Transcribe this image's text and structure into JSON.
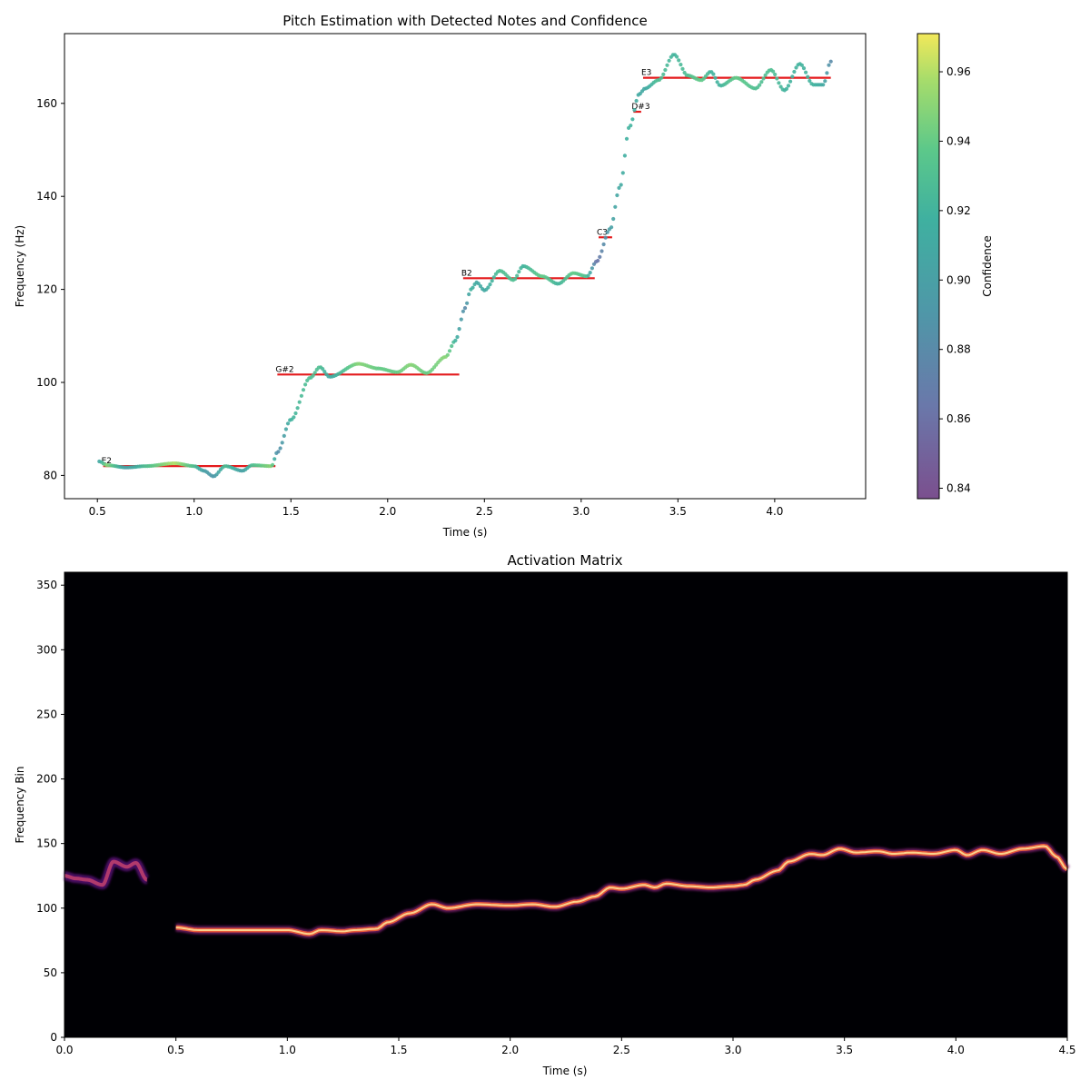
{
  "chart_data": [
    {
      "type": "scatter",
      "title": "Pitch Estimation with Detected Notes and Confidence",
      "xlabel": "Time (s)",
      "ylabel": "Frequency (Hz)",
      "xlim": [
        0.33,
        4.47
      ],
      "ylim": [
        75,
        175
      ],
      "xticks": [
        0.5,
        1.0,
        1.5,
        2.0,
        2.5,
        3.0,
        3.5,
        4.0
      ],
      "xtick_labels": [
        "0.5",
        "1.0",
        "1.5",
        "2.0",
        "2.5",
        "3.0",
        "3.5",
        "4.0"
      ],
      "yticks": [
        80,
        100,
        120,
        140,
        160
      ],
      "ytick_labels": [
        "80",
        "100",
        "120",
        "140",
        "160"
      ],
      "grid": false,
      "pitch_curve_keypoints": [
        [
          0.51,
          83.0,
          0.91
        ],
        [
          0.55,
          82.2,
          0.95
        ],
        [
          0.65,
          81.7,
          0.9
        ],
        [
          0.75,
          82.0,
          0.93
        ],
        [
          0.9,
          82.6,
          0.96
        ],
        [
          1.0,
          82.0,
          0.93
        ],
        [
          1.05,
          81.0,
          0.9
        ],
        [
          1.1,
          79.8,
          0.89
        ],
        [
          1.16,
          82.0,
          0.93
        ],
        [
          1.25,
          81.0,
          0.9
        ],
        [
          1.3,
          82.2,
          0.93
        ],
        [
          1.4,
          82.0,
          0.95
        ],
        [
          1.43,
          85.0,
          0.88
        ],
        [
          1.5,
          92.0,
          0.92
        ],
        [
          1.6,
          101.0,
          0.93
        ],
        [
          1.65,
          103.3,
          0.93
        ],
        [
          1.7,
          101.2,
          0.91
        ],
        [
          1.85,
          104.0,
          0.95
        ],
        [
          1.95,
          103.0,
          0.94
        ],
        [
          2.05,
          102.2,
          0.94
        ],
        [
          2.12,
          103.8,
          0.95
        ],
        [
          2.2,
          102.0,
          0.94
        ],
        [
          2.3,
          105.5,
          0.95
        ],
        [
          2.35,
          109.0,
          0.92
        ],
        [
          2.4,
          116.0,
          0.88
        ],
        [
          2.43,
          120.0,
          0.92
        ],
        [
          2.46,
          121.5,
          0.91
        ],
        [
          2.5,
          119.8,
          0.91
        ],
        [
          2.58,
          124.0,
          0.93
        ],
        [
          2.65,
          122.0,
          0.93
        ],
        [
          2.7,
          125.0,
          0.92
        ],
        [
          2.8,
          122.8,
          0.94
        ],
        [
          2.88,
          121.2,
          0.92
        ],
        [
          2.96,
          123.5,
          0.94
        ],
        [
          3.03,
          122.8,
          0.93
        ],
        [
          3.08,
          126.0,
          0.86
        ],
        [
          3.15,
          133.0,
          0.9
        ],
        [
          3.2,
          142.0,
          0.91
        ],
        [
          3.25,
          155.0,
          0.92
        ],
        [
          3.3,
          162.0,
          0.91
        ],
        [
          3.33,
          163.2,
          0.91
        ],
        [
          3.4,
          165.0,
          0.93
        ],
        [
          3.48,
          170.5,
          0.92
        ],
        [
          3.55,
          166.0,
          0.93
        ],
        [
          3.62,
          165.0,
          0.94
        ],
        [
          3.67,
          166.8,
          0.92
        ],
        [
          3.72,
          163.8,
          0.92
        ],
        [
          3.8,
          165.5,
          0.94
        ],
        [
          3.9,
          163.2,
          0.93
        ],
        [
          3.98,
          167.2,
          0.93
        ],
        [
          4.05,
          162.8,
          0.92
        ],
        [
          4.13,
          168.5,
          0.92
        ],
        [
          4.2,
          164.0,
          0.92
        ],
        [
          4.25,
          164.0,
          0.91
        ],
        [
          4.29,
          169.0,
          0.88
        ]
      ],
      "notes": [
        {
          "name": "E2",
          "start": 0.53,
          "end": 1.42,
          "freq": 82.0
        },
        {
          "name": "G#2",
          "start": 1.43,
          "end": 2.37,
          "freq": 101.7
        },
        {
          "name": "B2",
          "start": 2.39,
          "end": 3.07,
          "freq": 122.4
        },
        {
          "name": "C3",
          "start": 3.09,
          "end": 3.16,
          "freq": 131.2
        },
        {
          "name": "D#3",
          "start": 3.27,
          "end": 3.31,
          "freq": 158.2
        },
        {
          "name": "E3",
          "start": 3.32,
          "end": 4.29,
          "freq": 165.5
        }
      ],
      "colorbar": {
        "label": "Confidence",
        "range": [
          0.837,
          0.971
        ],
        "ticks": [
          0.84,
          0.86,
          0.88,
          0.9,
          0.92,
          0.94,
          0.96
        ],
        "tick_labels": [
          "0.84",
          "0.86",
          "0.88",
          "0.90",
          "0.92",
          "0.94",
          "0.96"
        ],
        "colormap": "viridis"
      },
      "colors": {
        "note_line": "#e41a1c"
      }
    },
    {
      "type": "heatmap",
      "title": "Activation Matrix",
      "xlabel": "Time (s)",
      "ylabel": "Frequency Bin",
      "xlim": [
        0.0,
        4.5
      ],
      "ylim": [
        0,
        360
      ],
      "xticks": [
        0.0,
        0.5,
        1.0,
        1.5,
        2.0,
        2.5,
        3.0,
        3.5,
        4.0,
        4.5
      ],
      "xtick_labels": [
        "0.0",
        "0.5",
        "1.0",
        "1.5",
        "2.0",
        "2.5",
        "3.0",
        "3.5",
        "4.0",
        "4.5"
      ],
      "yticks": [
        0,
        50,
        100,
        150,
        200,
        250,
        300,
        350
      ],
      "ytick_labels": [
        "0",
        "50",
        "100",
        "150",
        "200",
        "250",
        "300",
        "350"
      ],
      "colormap": "inferno",
      "background": "#000004",
      "ridge_keypoints": [
        [
          0.5,
          85
        ],
        [
          0.6,
          83
        ],
        [
          0.8,
          83
        ],
        [
          1.0,
          83
        ],
        [
          1.1,
          80
        ],
        [
          1.15,
          83
        ],
        [
          1.25,
          82
        ],
        [
          1.3,
          83
        ],
        [
          1.4,
          84
        ],
        [
          1.45,
          89
        ],
        [
          1.55,
          96
        ],
        [
          1.65,
          103
        ],
        [
          1.72,
          100
        ],
        [
          1.85,
          103
        ],
        [
          2.0,
          102
        ],
        [
          2.1,
          103
        ],
        [
          2.2,
          101
        ],
        [
          2.3,
          105
        ],
        [
          2.38,
          109
        ],
        [
          2.45,
          116
        ],
        [
          2.5,
          115
        ],
        [
          2.6,
          118
        ],
        [
          2.65,
          116
        ],
        [
          2.7,
          119
        ],
        [
          2.8,
          117
        ],
        [
          2.9,
          116
        ],
        [
          3.0,
          117
        ],
        [
          3.05,
          118
        ],
        [
          3.1,
          122
        ],
        [
          3.2,
          129
        ],
        [
          3.25,
          136
        ],
        [
          3.35,
          142
        ],
        [
          3.4,
          141
        ],
        [
          3.48,
          146
        ],
        [
          3.55,
          143
        ],
        [
          3.65,
          144
        ],
        [
          3.72,
          142
        ],
        [
          3.8,
          143
        ],
        [
          3.9,
          142
        ],
        [
          4.0,
          145
        ],
        [
          4.05,
          141
        ],
        [
          4.12,
          145
        ],
        [
          4.2,
          142
        ],
        [
          4.3,
          146
        ],
        [
          4.4,
          148
        ],
        [
          4.45,
          140
        ],
        [
          4.5,
          130
        ]
      ],
      "ridge_early_keypoints": [
        [
          0.0,
          125
        ],
        [
          0.05,
          123
        ],
        [
          0.1,
          122
        ],
        [
          0.17,
          118
        ],
        [
          0.22,
          136
        ],
        [
          0.28,
          132
        ],
        [
          0.32,
          135
        ],
        [
          0.37,
          122
        ]
      ]
    }
  ]
}
